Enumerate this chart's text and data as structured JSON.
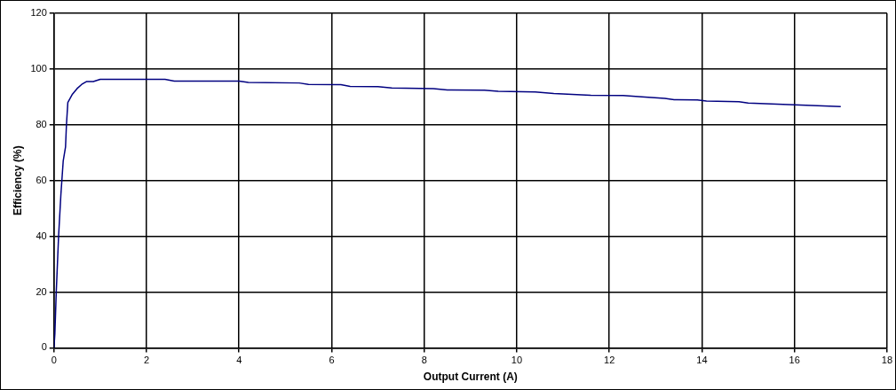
{
  "chart_data": {
    "type": "line",
    "xlabel": "Output Current (A)",
    "ylabel": "Efficiency (%)",
    "series": [
      {
        "color": "#000080",
        "x": [
          0,
          0.02,
          0.05,
          0.1,
          0.15,
          0.2,
          0.25,
          0.27,
          0.3,
          0.4,
          0.5,
          0.6,
          0.7,
          0.85,
          1.0,
          2.4,
          2.6,
          4,
          4.2,
          5.3,
          5.5,
          6.2,
          6.4,
          7,
          7.3,
          8.2,
          8.5,
          9.3,
          9.6,
          10.4,
          10.8,
          11.6,
          12.3,
          12.7,
          13.2,
          13.4,
          13.9,
          14.1,
          14.8,
          15,
          16,
          17
        ],
        "values": [
          0,
          5,
          20,
          40,
          55,
          67,
          72,
          80,
          88,
          91,
          93,
          94.5,
          95.5,
          95.5,
          96.3,
          96.3,
          95.7,
          95.7,
          95.2,
          95,
          94.5,
          94.4,
          93.8,
          93.7,
          93.2,
          93,
          92.5,
          92.4,
          92,
          91.8,
          91.2,
          90.6,
          90.5,
          90,
          89.5,
          89,
          88.9,
          88.5,
          88.3,
          87.8,
          87.2,
          86.5
        ]
      }
    ],
    "xlim": [
      0,
      18
    ],
    "xticks": [
      0,
      2,
      4,
      6,
      8,
      10,
      12,
      14,
      16,
      18
    ],
    "ylim": [
      0,
      120
    ],
    "yticks": [
      0,
      20,
      40,
      60,
      80,
      100,
      120
    ],
    "grid": true,
    "legend": false,
    "marker": "none",
    "line_style": "solid"
  }
}
